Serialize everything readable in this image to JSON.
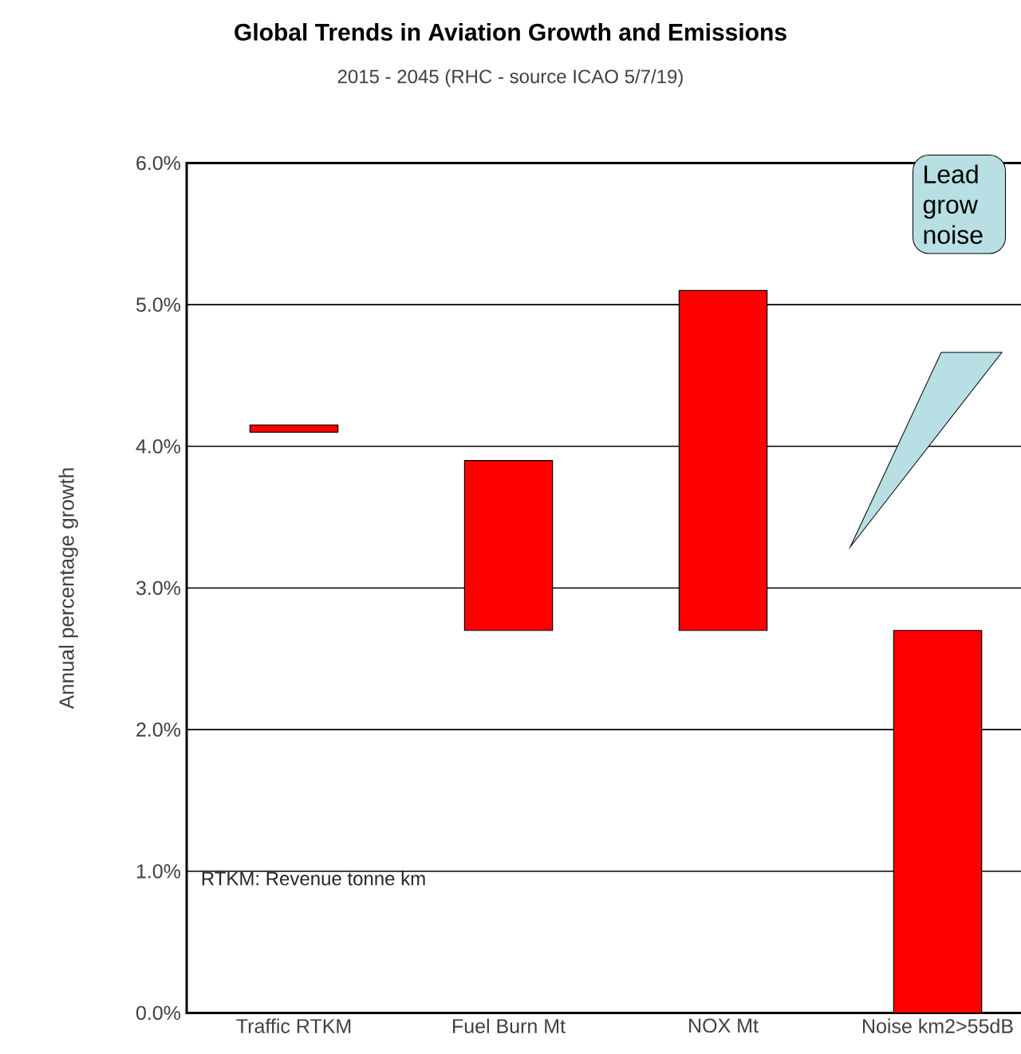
{
  "chart_data": {
    "type": "bar",
    "title": "Global Trends in Aviation Growth and Emissions",
    "subtitle": "2015 - 2045 (RHC - source ICAO 5/7/19)",
    "ylabel": "Annual percentage growth",
    "categories": [
      "Traffic RTKM",
      "Fuel Burn Mt",
      "NOX Mt",
      "Noise km2>55dB"
    ],
    "values": [
      0.05,
      1.2,
      2.4,
      2.7
    ],
    "base": [
      4.1,
      2.7,
      2.7,
      0
    ],
    "color": "#ff0000",
    "ylim": [
      0,
      6
    ],
    "yticks": [
      {
        "value": 0,
        "label": "0.0%"
      },
      {
        "value": 1,
        "label": "1.0%"
      },
      {
        "value": 2,
        "label": "2.0%"
      },
      {
        "value": 3,
        "label": "3.0%"
      },
      {
        "value": 4,
        "label": "4.0%"
      },
      {
        "value": 5,
        "label": "5.0%"
      },
      {
        "value": 6,
        "label": "6.0%"
      }
    ],
    "grid": "y",
    "annotations": [
      "RTKM: Revenue tonne km",
      "Lead grow noise"
    ]
  }
}
